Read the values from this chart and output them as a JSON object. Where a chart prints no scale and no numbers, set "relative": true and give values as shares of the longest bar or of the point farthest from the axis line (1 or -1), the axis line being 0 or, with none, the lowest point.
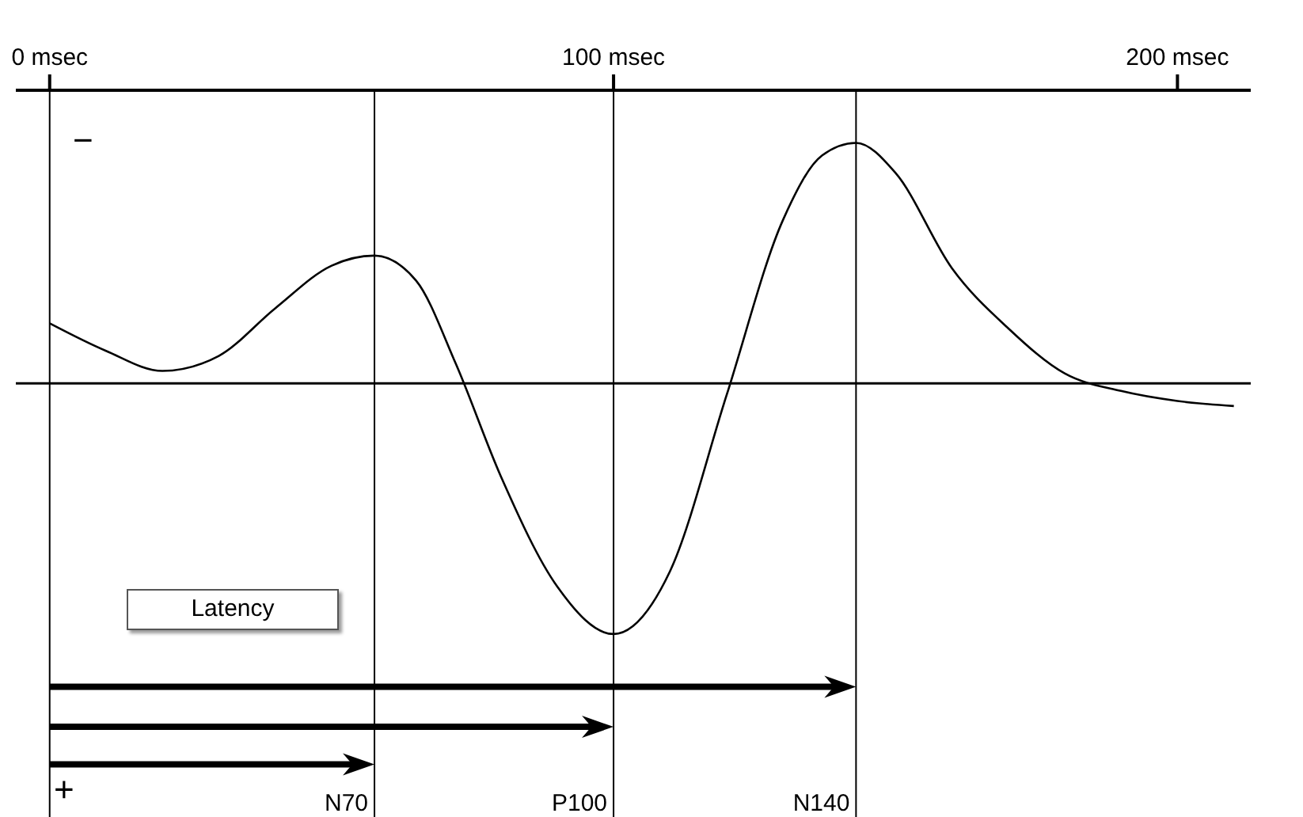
{
  "chart_data": {
    "type": "line",
    "relative": true,
    "x": [
      0,
      10,
      20,
      30,
      40,
      50,
      57.6,
      65,
      72,
      80,
      90,
      100,
      110,
      120,
      130,
      137,
      143,
      150,
      160,
      170,
      180,
      190,
      200,
      210
    ],
    "series": [
      {
        "color": "#000000",
        "values": [
          0.24,
          0.13,
          0.05,
          0.11,
          0.3,
          0.47,
          0.51,
          0.41,
          0.08,
          -0.37,
          -0.81,
          -1,
          -0.75,
          -0.05,
          0.65,
          0.91,
          0.96,
          0.84,
          0.46,
          0.22,
          0.04,
          -0.03,
          -0.07,
          -0.09
        ]
      }
    ],
    "xlim": [
      -6,
      213
    ],
    "xticks": [
      {
        "value": 0,
        "label": "0 msec"
      },
      {
        "value": 100,
        "label": "100 msec"
      },
      {
        "value": 200,
        "label": "200 msec"
      }
    ],
    "ref_lines": [
      {
        "axis": "y",
        "value": 0
      },
      {
        "axis": "x",
        "value": 0
      },
      {
        "axis": "x",
        "value": 57.6,
        "label": "N70"
      },
      {
        "axis": "x",
        "value": 100,
        "label": "P100"
      },
      {
        "axis": "x",
        "value": 143,
        "label": "N140"
      }
    ],
    "annotations": [
      "−",
      "+",
      "Latency"
    ],
    "marker": "none",
    "line_style": "solid"
  }
}
